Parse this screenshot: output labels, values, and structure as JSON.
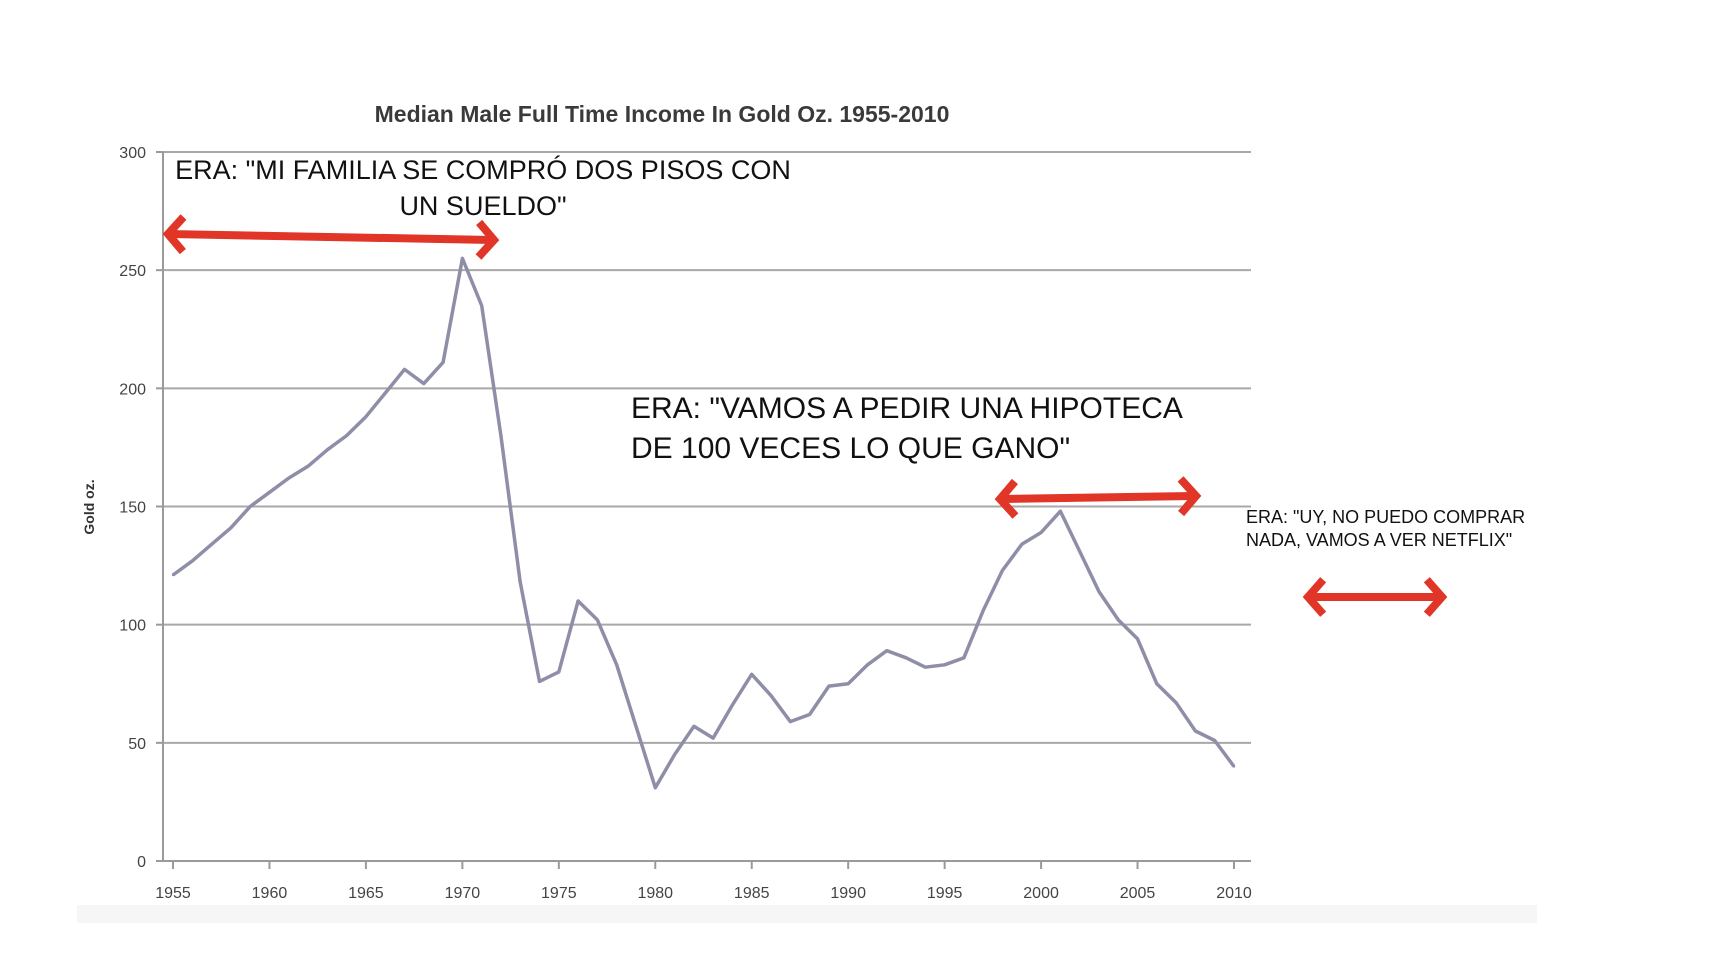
{
  "chart_data": {
    "type": "line",
    "title": "Median Male Full Time Income In Gold Oz. 1955-2010",
    "xlabel": "",
    "ylabel": "Gold oz.",
    "xlim": [
      1955,
      2010
    ],
    "ylim": [
      0,
      300
    ],
    "x_ticks": [
      "1955",
      "1960",
      "1965",
      "1970",
      "1975",
      "1980",
      "1985",
      "1990",
      "1995",
      "2000",
      "2005",
      "2010"
    ],
    "y_ticks": [
      "0",
      "50",
      "100",
      "150",
      "200",
      "250",
      "300"
    ],
    "grid": true,
    "series_color": "#8e8ea8",
    "series": [
      {
        "x": [
          1955,
          1956,
          1957,
          1958,
          1959,
          1960,
          1961,
          1962,
          1963,
          1964,
          1965,
          1966,
          1967,
          1968,
          1969,
          1970,
          1971,
          1972,
          1973,
          1974,
          1975,
          1976,
          1977,
          1978,
          1979,
          1980,
          1981,
          1982,
          1983,
          1984,
          1985,
          1986,
          1987,
          1988,
          1989,
          1990,
          1991,
          1992,
          1993,
          1994,
          1995,
          1996,
          1997,
          1998,
          1999,
          2000,
          2001,
          2002,
          2003,
          2004,
          2005,
          2006,
          2007,
          2008,
          2009,
          2010
        ],
        "values": [
          121,
          127,
          134,
          141,
          150,
          156,
          162,
          167,
          174,
          180,
          188,
          198,
          208,
          202,
          211,
          255,
          235,
          180,
          118,
          76,
          80,
          110,
          102,
          83,
          57,
          31,
          45,
          57,
          52,
          66,
          79,
          70,
          59,
          62,
          74,
          75,
          83,
          89,
          86,
          82,
          83,
          86,
          106,
          123,
          134,
          139,
          148,
          131,
          114,
          102,
          94,
          75,
          67,
          55,
          51,
          40
        ]
      }
    ]
  },
  "annotations": {
    "era1_line1": "ERA: \"MI FAMILIA SE COMPRÓ DOS PISOS CON",
    "era1_line2": "UN SUELDO\"",
    "era2_line1": "ERA: \"VAMOS A PEDIR UNA HIPOTECA",
    "era2_line2": "DE 100 VECES LO QUE GANO\"",
    "era3_line1": "ERA: \"UY, NO PUEDO COMPRAR",
    "era3_line2": "NADA, VAMOS A VER NETFLIX\""
  },
  "colors": {
    "arrow": "#e03527",
    "grid": "#a8a8a8",
    "axis": "#9a9a9a"
  }
}
